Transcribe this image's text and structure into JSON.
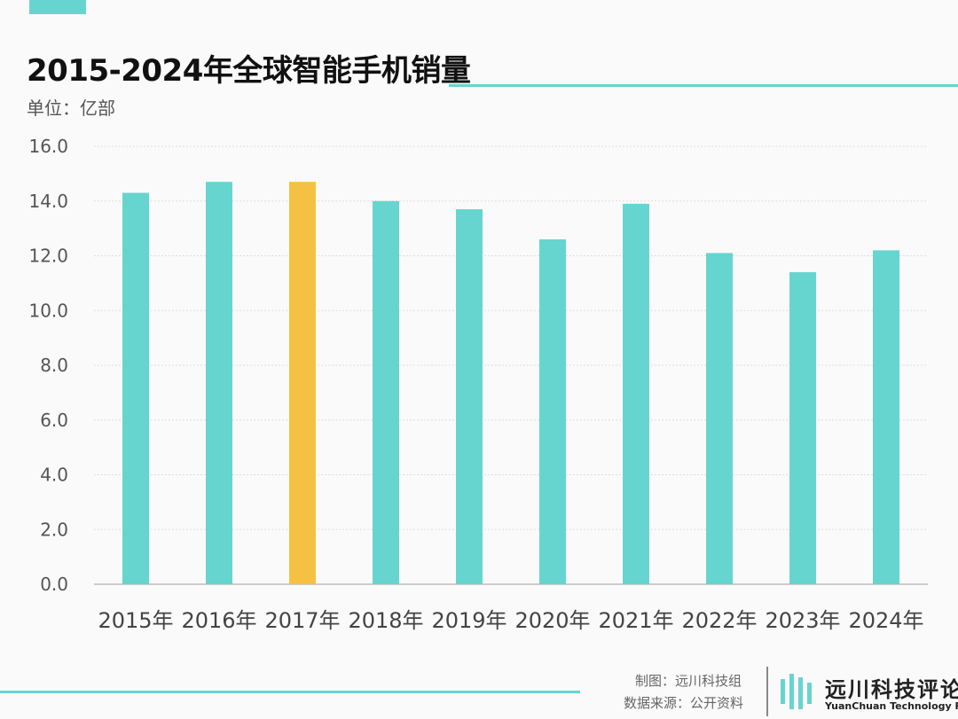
{
  "header": {
    "title": "2015-2024年全球智能手机销量",
    "unit": "单位：亿部"
  },
  "colors": {
    "bar": "#66d5cf",
    "highlight": "#f5c142",
    "accent": "#66d5cf"
  },
  "chart_data": {
    "type": "bar",
    "title": "2015-2024年全球智能手机销量",
    "ylabel": "单位：亿部",
    "xlabel": "",
    "categories": [
      "2015年",
      "2016年",
      "2017年",
      "2018年",
      "2019年",
      "2020年",
      "2021年",
      "2022年",
      "2023年",
      "2024年"
    ],
    "values": [
      14.3,
      14.7,
      14.7,
      14.0,
      13.7,
      12.6,
      13.9,
      12.1,
      11.4,
      12.2
    ],
    "highlight_index": 2,
    "ylim": [
      0,
      16
    ],
    "yticks": [
      "0.0",
      "2.0",
      "4.0",
      "6.0",
      "8.0",
      "10.0",
      "12.0",
      "14.0",
      "16.0"
    ],
    "grid": true
  },
  "footer": {
    "maker": "制图：远川科技组",
    "source": "数据来源：公开资料",
    "logo_cn": "远川科技评论",
    "logo_en": "YuanChuan Technology Review"
  }
}
